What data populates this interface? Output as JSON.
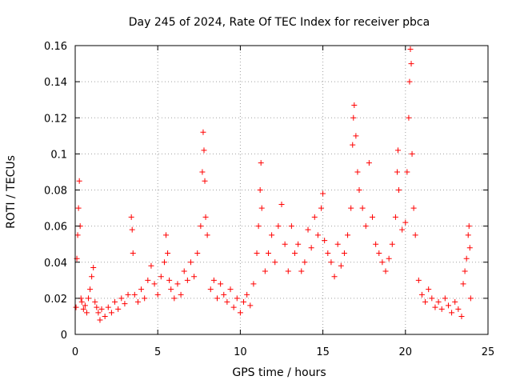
{
  "chart_data": {
    "type": "scatter",
    "title": "Day 245 of 2024, Rate Of TEC Index for receiver pbca",
    "xlabel": "GPS time / hours",
    "ylabel": "ROTI / TECUs",
    "xlim": [
      0,
      25
    ],
    "ylim": [
      0,
      0.16
    ],
    "xticks": [
      "0",
      "5",
      "10",
      "15",
      "20",
      "25"
    ],
    "yticks": [
      "0",
      "0.02",
      "0.04",
      "0.06",
      "0.08",
      "0.1",
      "0.12",
      "0.14",
      "0.16"
    ],
    "grid": true,
    "marker": "+",
    "color": "#ff0000",
    "series": [
      {
        "name": "ROTI",
        "points": [
          [
            0.05,
            0.015
          ],
          [
            0.1,
            0.042
          ],
          [
            0.15,
            0.055
          ],
          [
            0.2,
            0.07
          ],
          [
            0.25,
            0.085
          ],
          [
            0.3,
            0.06
          ],
          [
            0.35,
            0.02
          ],
          [
            0.4,
            0.018
          ],
          [
            0.5,
            0.014
          ],
          [
            0.6,
            0.016
          ],
          [
            0.7,
            0.012
          ],
          [
            0.8,
            0.02
          ],
          [
            0.9,
            0.025
          ],
          [
            1.0,
            0.032
          ],
          [
            1.1,
            0.037
          ],
          [
            1.2,
            0.018
          ],
          [
            1.3,
            0.015
          ],
          [
            1.4,
            0.012
          ],
          [
            1.5,
            0.008
          ],
          [
            1.6,
            0.014
          ],
          [
            1.8,
            0.01
          ],
          [
            2.0,
            0.015
          ],
          [
            2.2,
            0.012
          ],
          [
            2.4,
            0.018
          ],
          [
            2.6,
            0.014
          ],
          [
            2.8,
            0.02
          ],
          [
            3.0,
            0.017
          ],
          [
            3.2,
            0.022
          ],
          [
            3.4,
            0.065
          ],
          [
            3.45,
            0.058
          ],
          [
            3.5,
            0.045
          ],
          [
            3.6,
            0.022
          ],
          [
            3.8,
            0.018
          ],
          [
            4.0,
            0.025
          ],
          [
            4.2,
            0.02
          ],
          [
            4.4,
            0.03
          ],
          [
            4.6,
            0.038
          ],
          [
            4.8,
            0.028
          ],
          [
            5.0,
            0.022
          ],
          [
            5.2,
            0.032
          ],
          [
            5.4,
            0.04
          ],
          [
            5.5,
            0.055
          ],
          [
            5.6,
            0.045
          ],
          [
            5.7,
            0.03
          ],
          [
            5.8,
            0.025
          ],
          [
            6.0,
            0.02
          ],
          [
            6.2,
            0.028
          ],
          [
            6.4,
            0.022
          ],
          [
            6.6,
            0.035
          ],
          [
            6.8,
            0.03
          ],
          [
            7.0,
            0.04
          ],
          [
            7.2,
            0.032
          ],
          [
            7.4,
            0.045
          ],
          [
            7.6,
            0.06
          ],
          [
            7.7,
            0.09
          ],
          [
            7.75,
            0.112
          ],
          [
            7.8,
            0.102
          ],
          [
            7.85,
            0.085
          ],
          [
            7.9,
            0.065
          ],
          [
            8.0,
            0.055
          ],
          [
            8.2,
            0.025
          ],
          [
            8.4,
            0.03
          ],
          [
            8.6,
            0.02
          ],
          [
            8.8,
            0.028
          ],
          [
            9.0,
            0.022
          ],
          [
            9.2,
            0.018
          ],
          [
            9.4,
            0.025
          ],
          [
            9.6,
            0.015
          ],
          [
            9.8,
            0.02
          ],
          [
            10.0,
            0.012
          ],
          [
            10.2,
            0.018
          ],
          [
            10.4,
            0.022
          ],
          [
            10.6,
            0.016
          ],
          [
            10.8,
            0.028
          ],
          [
            11.0,
            0.045
          ],
          [
            11.1,
            0.06
          ],
          [
            11.2,
            0.08
          ],
          [
            11.25,
            0.095
          ],
          [
            11.3,
            0.07
          ],
          [
            11.5,
            0.035
          ],
          [
            11.7,
            0.045
          ],
          [
            11.9,
            0.055
          ],
          [
            12.1,
            0.04
          ],
          [
            12.3,
            0.06
          ],
          [
            12.5,
            0.072
          ],
          [
            12.7,
            0.05
          ],
          [
            12.9,
            0.035
          ],
          [
            13.1,
            0.06
          ],
          [
            13.3,
            0.045
          ],
          [
            13.5,
            0.05
          ],
          [
            13.7,
            0.035
          ],
          [
            13.9,
            0.04
          ],
          [
            14.1,
            0.058
          ],
          [
            14.3,
            0.048
          ],
          [
            14.5,
            0.065
          ],
          [
            14.7,
            0.055
          ],
          [
            14.9,
            0.07
          ],
          [
            15.0,
            0.078
          ],
          [
            15.1,
            0.052
          ],
          [
            15.3,
            0.045
          ],
          [
            15.5,
            0.04
          ],
          [
            15.7,
            0.032
          ],
          [
            15.9,
            0.05
          ],
          [
            16.1,
            0.038
          ],
          [
            16.3,
            0.045
          ],
          [
            16.5,
            0.055
          ],
          [
            16.7,
            0.07
          ],
          [
            16.8,
            0.105
          ],
          [
            16.85,
            0.12
          ],
          [
            16.9,
            0.127
          ],
          [
            17.0,
            0.11
          ],
          [
            17.1,
            0.09
          ],
          [
            17.2,
            0.08
          ],
          [
            17.4,
            0.07
          ],
          [
            17.6,
            0.06
          ],
          [
            17.8,
            0.095
          ],
          [
            18.0,
            0.065
          ],
          [
            18.2,
            0.05
          ],
          [
            18.4,
            0.045
          ],
          [
            18.6,
            0.04
          ],
          [
            18.8,
            0.035
          ],
          [
            19.0,
            0.042
          ],
          [
            19.2,
            0.05
          ],
          [
            19.4,
            0.065
          ],
          [
            19.5,
            0.09
          ],
          [
            19.55,
            0.102
          ],
          [
            19.6,
            0.08
          ],
          [
            19.8,
            0.058
          ],
          [
            20.0,
            0.062
          ],
          [
            20.1,
            0.09
          ],
          [
            20.2,
            0.12
          ],
          [
            20.25,
            0.14
          ],
          [
            20.3,
            0.158
          ],
          [
            20.35,
            0.15
          ],
          [
            20.4,
            0.1
          ],
          [
            20.5,
            0.07
          ],
          [
            20.6,
            0.055
          ],
          [
            20.8,
            0.03
          ],
          [
            21.0,
            0.022
          ],
          [
            21.2,
            0.018
          ],
          [
            21.4,
            0.025
          ],
          [
            21.6,
            0.02
          ],
          [
            21.8,
            0.015
          ],
          [
            22.0,
            0.018
          ],
          [
            22.2,
            0.014
          ],
          [
            22.4,
            0.02
          ],
          [
            22.6,
            0.016
          ],
          [
            22.8,
            0.012
          ],
          [
            23.0,
            0.018
          ],
          [
            23.2,
            0.014
          ],
          [
            23.4,
            0.01
          ],
          [
            23.5,
            0.028
          ],
          [
            23.6,
            0.035
          ],
          [
            23.7,
            0.042
          ],
          [
            23.8,
            0.055
          ],
          [
            23.85,
            0.06
          ],
          [
            23.9,
            0.048
          ],
          [
            23.95,
            0.02
          ]
        ]
      }
    ]
  }
}
